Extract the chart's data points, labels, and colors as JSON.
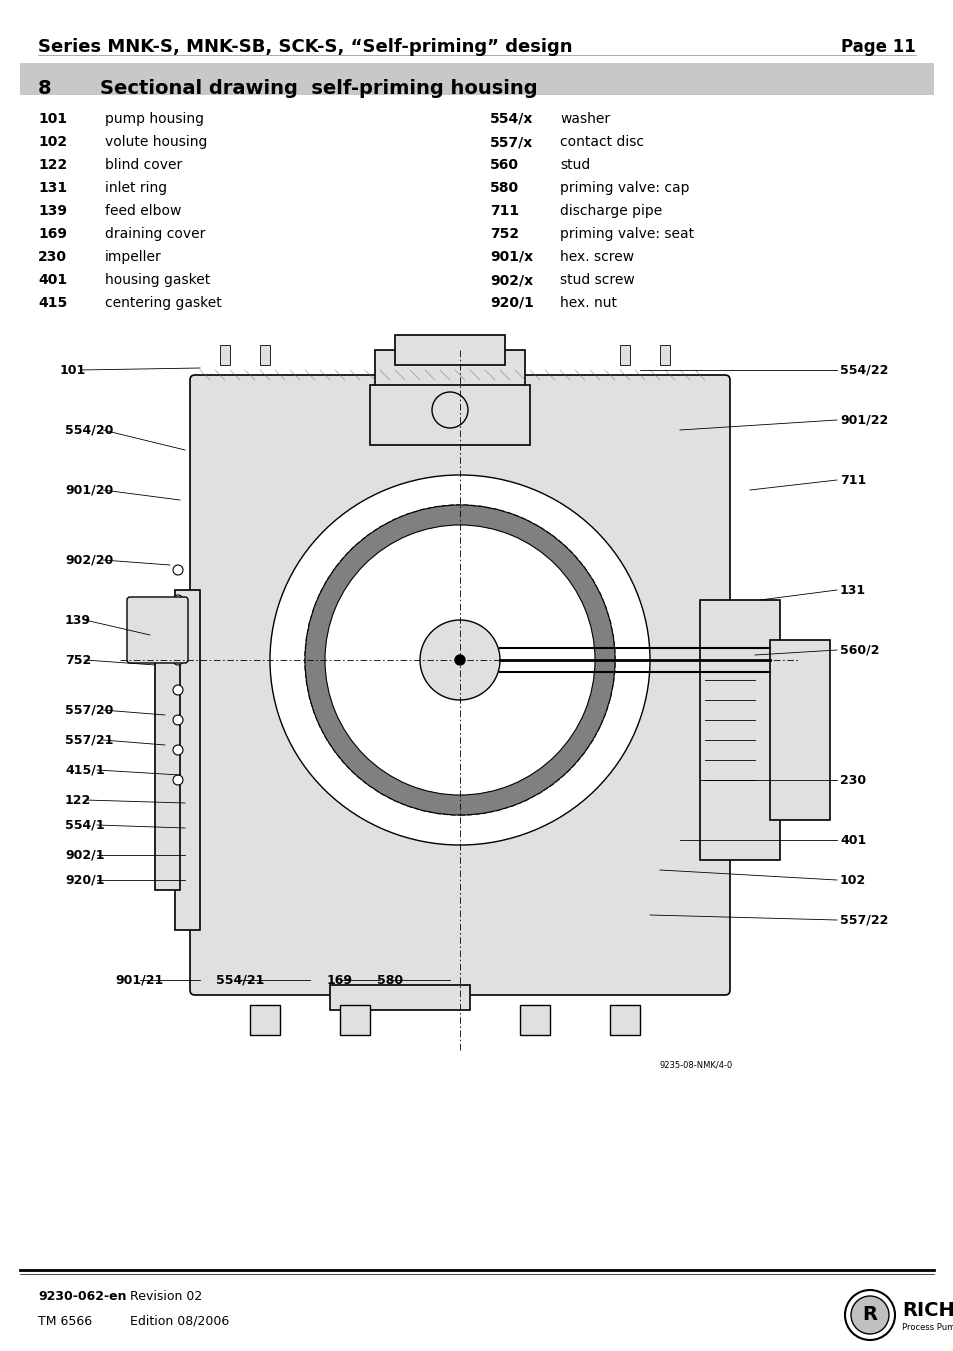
{
  "page_title": "Series MNK-S, MNK-SB, SCK-S, “Self-priming” design",
  "page_number": "Page 11",
  "section_number": "8",
  "section_title": "Sectional drawing  self-priming housing",
  "section_bg": "#c8c8c8",
  "parts_left": [
    [
      "101",
      "pump housing"
    ],
    [
      "102",
      "volute housing"
    ],
    [
      "122",
      "blind cover"
    ],
    [
      "131",
      "inlet ring"
    ],
    [
      "139",
      "feed elbow"
    ],
    [
      "169",
      "draining cover"
    ],
    [
      "230",
      "impeller"
    ],
    [
      "401",
      "housing gasket"
    ],
    [
      "415",
      "centering gasket"
    ]
  ],
  "parts_right": [
    [
      "554/x",
      "washer"
    ],
    [
      "557/x",
      "contact disc"
    ],
    [
      "560",
      "stud"
    ],
    [
      "580",
      "priming valve: cap"
    ],
    [
      "711",
      "discharge pipe"
    ],
    [
      "752",
      "priming valve: seat"
    ],
    [
      "901/x",
      "hex. screw"
    ],
    [
      "902/x",
      "stud screw"
    ],
    [
      "920/1",
      "hex. nut"
    ]
  ],
  "footer_left1": "9230-062-en",
  "footer_left1_bold": true,
  "footer_left2": "TM 6566",
  "footer_right1": "Revision 02",
  "footer_right2": "Edition 08/2006",
  "bg_color": "#ffffff",
  "text_color": "#000000",
  "header_line_color": "#000000",
  "footer_line_color": "#000000"
}
